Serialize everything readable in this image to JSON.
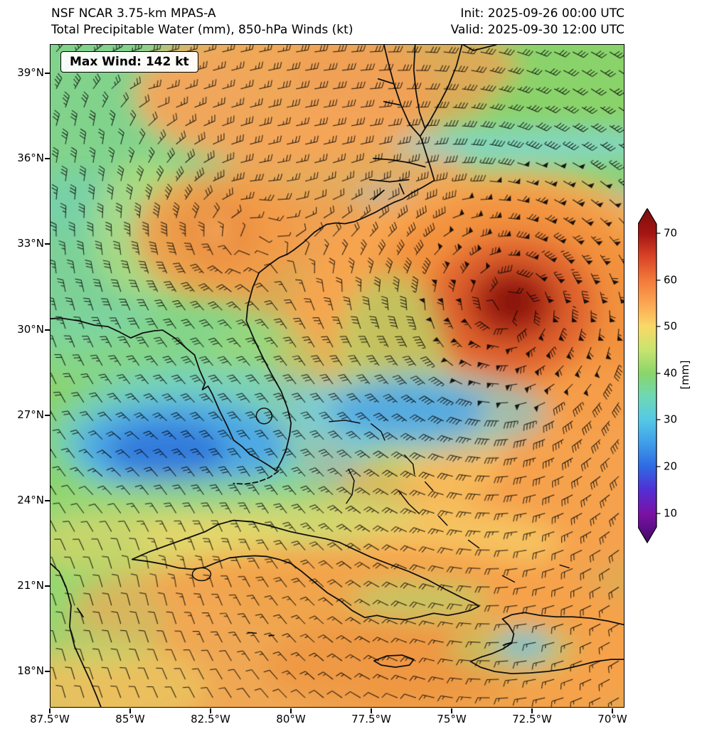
{
  "header": {
    "model": "NSF NCAR 3.75-km MPAS-A",
    "product": "Total Precipitable Water (mm), 850-hPa Winds (kt)",
    "init": "Init: 2025-09-26 00:00 UTC",
    "valid": "Valid: 2025-09-30 12:00 UTC"
  },
  "map": {
    "annotation": "Max Wind: 142 kt"
  },
  "axes": {
    "lat_ticks": [
      "39°N",
      "36°N",
      "33°N",
      "30°N",
      "27°N",
      "24°N",
      "21°N",
      "18°N"
    ],
    "lon_ticks": [
      "87.5°W",
      "85°W",
      "82.5°W",
      "80°W",
      "77.5°W",
      "75°W",
      "72.5°W",
      "70°W"
    ]
  },
  "colorbar": {
    "ticks": [
      "70",
      "60",
      "50",
      "40",
      "30",
      "20",
      "10"
    ],
    "label": "[mm]",
    "extend": "both",
    "gradient_stops": [
      "#420a5e",
      "#5c0d86",
      "#7a12a6",
      "#5130d5",
      "#2f6ae3",
      "#3f9fe8",
      "#55c8e6",
      "#6ed8b4",
      "#8ad56b",
      "#c8e46f",
      "#f9d867",
      "#fba653",
      "#f2793a",
      "#d94327",
      "#a31512",
      "#7c0c0f"
    ]
  },
  "chart_data": {
    "type": "heatmap",
    "title": "Total Precipitable Water (mm), 850-hPa Winds (kt)",
    "model": "NSF NCAR 3.75-km MPAS-A",
    "init_time": "2025-09-26 00:00 UTC",
    "valid_time": "2025-09-30 12:00 UTC",
    "units": "mm",
    "field": "total precipitable water",
    "overlay": "850-hPa wind barbs (kt)",
    "max_wind_kt": 142,
    "colorbar_range": [
      10,
      70
    ],
    "colorbar_tick_step": 10,
    "x_axis": {
      "label": "longitude",
      "ticks": [
        "87.5°W",
        "85°W",
        "82.5°W",
        "80°W",
        "77.5°W",
        "75°W",
        "72.5°W",
        "70°W"
      ],
      "approx_range_deg_w": [
        87.5,
        69.6
      ]
    },
    "y_axis": {
      "label": "latitude",
      "ticks": [
        "39°N",
        "36°N",
        "33°N",
        "30°N",
        "27°N",
        "24°N",
        "21°N",
        "18°N"
      ],
      "approx_range_deg_n": [
        16.7,
        40.1
      ]
    },
    "notable_features": [
      {
        "name": "intense hurricane vortex",
        "approx_position": "31.2°N, 72.5°W",
        "tpw_mm": "70+ (dark red core)",
        "winds": "pennant barbs; plot max 142 kt"
      },
      {
        "name": "inland cyclonic swirl",
        "approx_position": "33.7°N, 82.5°W",
        "tpw_mm": "50-55 (orange core)"
      },
      {
        "name": "dry slot, eastern Gulf of Mexico",
        "approx_position": "26.5°N, 84°W",
        "tpw_mm": "20-25 (blue)"
      },
      {
        "name": "dry slot, west Atlantic",
        "approx_position": "27°N, 76°W",
        "tpw_mm": "25-30 (blue)"
      },
      {
        "name": "moist tropical band over Cuba/Hispaniola/Caribbean",
        "approx_position": "17-23°N",
        "tpw_mm": "50-60 (orange)"
      },
      {
        "name": "moderate moisture, northwest quadrant",
        "approx_position": "30-40°N west of 83°W",
        "tpw_mm": "35-45 (green/cyan)"
      }
    ]
  }
}
